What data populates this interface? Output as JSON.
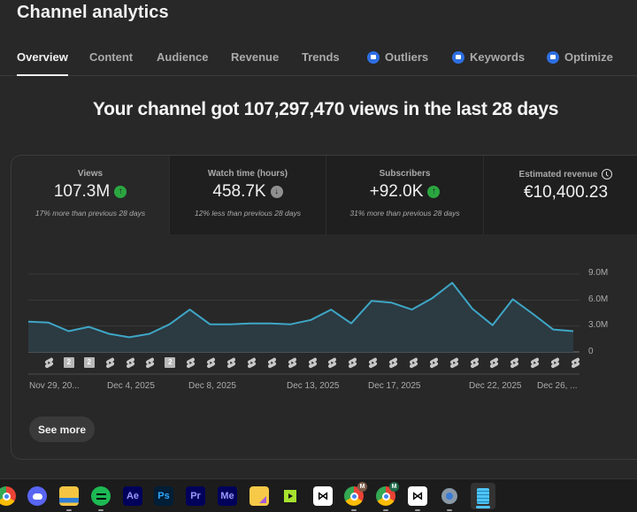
{
  "page": {
    "title": "Channel analytics",
    "headline": "Your channel got 107,297,470 views in the last 28 days"
  },
  "tabs": [
    {
      "label": "Overview",
      "active": true,
      "icon": null
    },
    {
      "label": "Content",
      "active": false,
      "icon": null
    },
    {
      "label": "Audience",
      "active": false,
      "icon": null
    },
    {
      "label": "Revenue",
      "active": false,
      "icon": null
    },
    {
      "label": "Trends",
      "active": false,
      "icon": null
    },
    {
      "label": "Outliers",
      "active": false,
      "icon": "extension-icon"
    },
    {
      "label": "Keywords",
      "active": false,
      "icon": "extension-icon"
    },
    {
      "label": "Optimize",
      "active": false,
      "icon": "extension-icon"
    }
  ],
  "metrics": [
    {
      "label": "Views",
      "value": "107.3M",
      "trend": "up",
      "comparison": "17% more than previous 28 days"
    },
    {
      "label": "Watch time (hours)",
      "value": "458.7K",
      "trend": "down",
      "comparison": "12% less than previous 28 days"
    },
    {
      "label": "Subscribers",
      "value": "+92.0K",
      "trend": "up",
      "comparison": "31% more than previous 28 days"
    },
    {
      "label": "Estimated revenue",
      "value": "€10,400.23",
      "trend": null,
      "comparison": "",
      "icon": "clock-icon"
    }
  ],
  "colors": {
    "accent_line": "#3ea6c6",
    "area_fill": "#2c3a42",
    "trend_up": "#2ba640",
    "trend_down": "#909090",
    "extension_blue": "#2e6fe0"
  },
  "chart_data": {
    "type": "area",
    "title": "Views",
    "xlabel": "",
    "ylabel": "",
    "ylim": [
      0,
      9000000
    ],
    "y_ticks": [
      "0",
      "3.0M",
      "6.0M",
      "9.0M"
    ],
    "x_tick_labels": [
      "Nov 29, 20...",
      "Dec 4, 2025",
      "Dec 8, 2025",
      "Dec 13, 2025",
      "Dec 17, 2025",
      "Dec 22, 2025",
      "Dec 26, ..."
    ],
    "x": [
      "Nov 29",
      "Nov 30",
      "Dec 1",
      "Dec 2",
      "Dec 3",
      "Dec 4",
      "Dec 5",
      "Dec 6",
      "Dec 7",
      "Dec 8",
      "Dec 9",
      "Dec 10",
      "Dec 11",
      "Dec 12",
      "Dec 13",
      "Dec 14",
      "Dec 15",
      "Dec 16",
      "Dec 17",
      "Dec 18",
      "Dec 19",
      "Dec 20",
      "Dec 21",
      "Dec 22",
      "Dec 23",
      "Dec 24",
      "Dec 25",
      "Dec 26"
    ],
    "series": [
      {
        "name": "Views",
        "values": [
          3500000,
          3400000,
          2400000,
          2900000,
          2100000,
          1700000,
          2100000,
          3200000,
          4900000,
          3200000,
          3200000,
          3300000,
          3300000,
          3200000,
          3700000,
          4900000,
          3300000,
          5900000,
          5700000,
          4900000,
          6200000,
          8000000,
          5000000,
          3100000,
          6100000,
          4400000,
          2600000,
          2400000
        ]
      }
    ],
    "grid": true,
    "legend": "none",
    "annotations": [
      "shorts",
      "2",
      "2",
      "shorts",
      "shorts",
      "shorts",
      "2",
      "shorts",
      "shorts",
      "shorts",
      "shorts",
      "shorts",
      "shorts",
      "shorts",
      "shorts",
      "shorts",
      "shorts",
      "shorts",
      "shorts",
      "shorts",
      "shorts",
      "shorts",
      "shorts",
      "shorts",
      "shorts",
      "shorts",
      "shorts"
    ]
  },
  "see_more_label": "See more",
  "taskbar": [
    {
      "name": "chrome",
      "label": "",
      "bg": "#ffffff",
      "fg": "#e33"
    },
    {
      "name": "discord",
      "label": "",
      "bg": "#5865f2",
      "fg": "#fff"
    },
    {
      "name": "file-explorer",
      "label": "",
      "bg": "#f5c542",
      "fg": "#fff"
    },
    {
      "name": "spotify",
      "label": "",
      "bg": "#1db954",
      "fg": "#000"
    },
    {
      "name": "after-effects",
      "label": "Ae",
      "bg": "#00005b",
      "fg": "#9999ff"
    },
    {
      "name": "photoshop",
      "label": "Ps",
      "bg": "#001e36",
      "fg": "#31a8ff"
    },
    {
      "name": "premiere-pro",
      "label": "Pr",
      "bg": "#00005b",
      "fg": "#9999ff"
    },
    {
      "name": "media-encoder",
      "label": "Me",
      "bg": "#00005b",
      "fg": "#9999ff"
    },
    {
      "name": "sticky-notes",
      "label": "",
      "bg": "#f7c948",
      "fg": "#a45cd9"
    },
    {
      "name": "media-player",
      "label": "",
      "bg": "#1b1b1b",
      "fg": "#a6e22e"
    },
    {
      "name": "capcut",
      "label": "",
      "bg": "#ffffff",
      "fg": "#000"
    },
    {
      "name": "chrome-profile-m1",
      "label": "M",
      "bg": "#ffffff",
      "fg": "#e33"
    },
    {
      "name": "chrome-profile-m2",
      "label": "M",
      "bg": "#ffffff",
      "fg": "#e33"
    },
    {
      "name": "capcut-2",
      "label": "",
      "bg": "#ffffff",
      "fg": "#000"
    },
    {
      "name": "settings",
      "label": "",
      "bg": "#7a8894",
      "fg": "#3a7bd5"
    },
    {
      "name": "notepad",
      "label": "",
      "bg": "#4fc3f7",
      "fg": "#fff"
    }
  ]
}
